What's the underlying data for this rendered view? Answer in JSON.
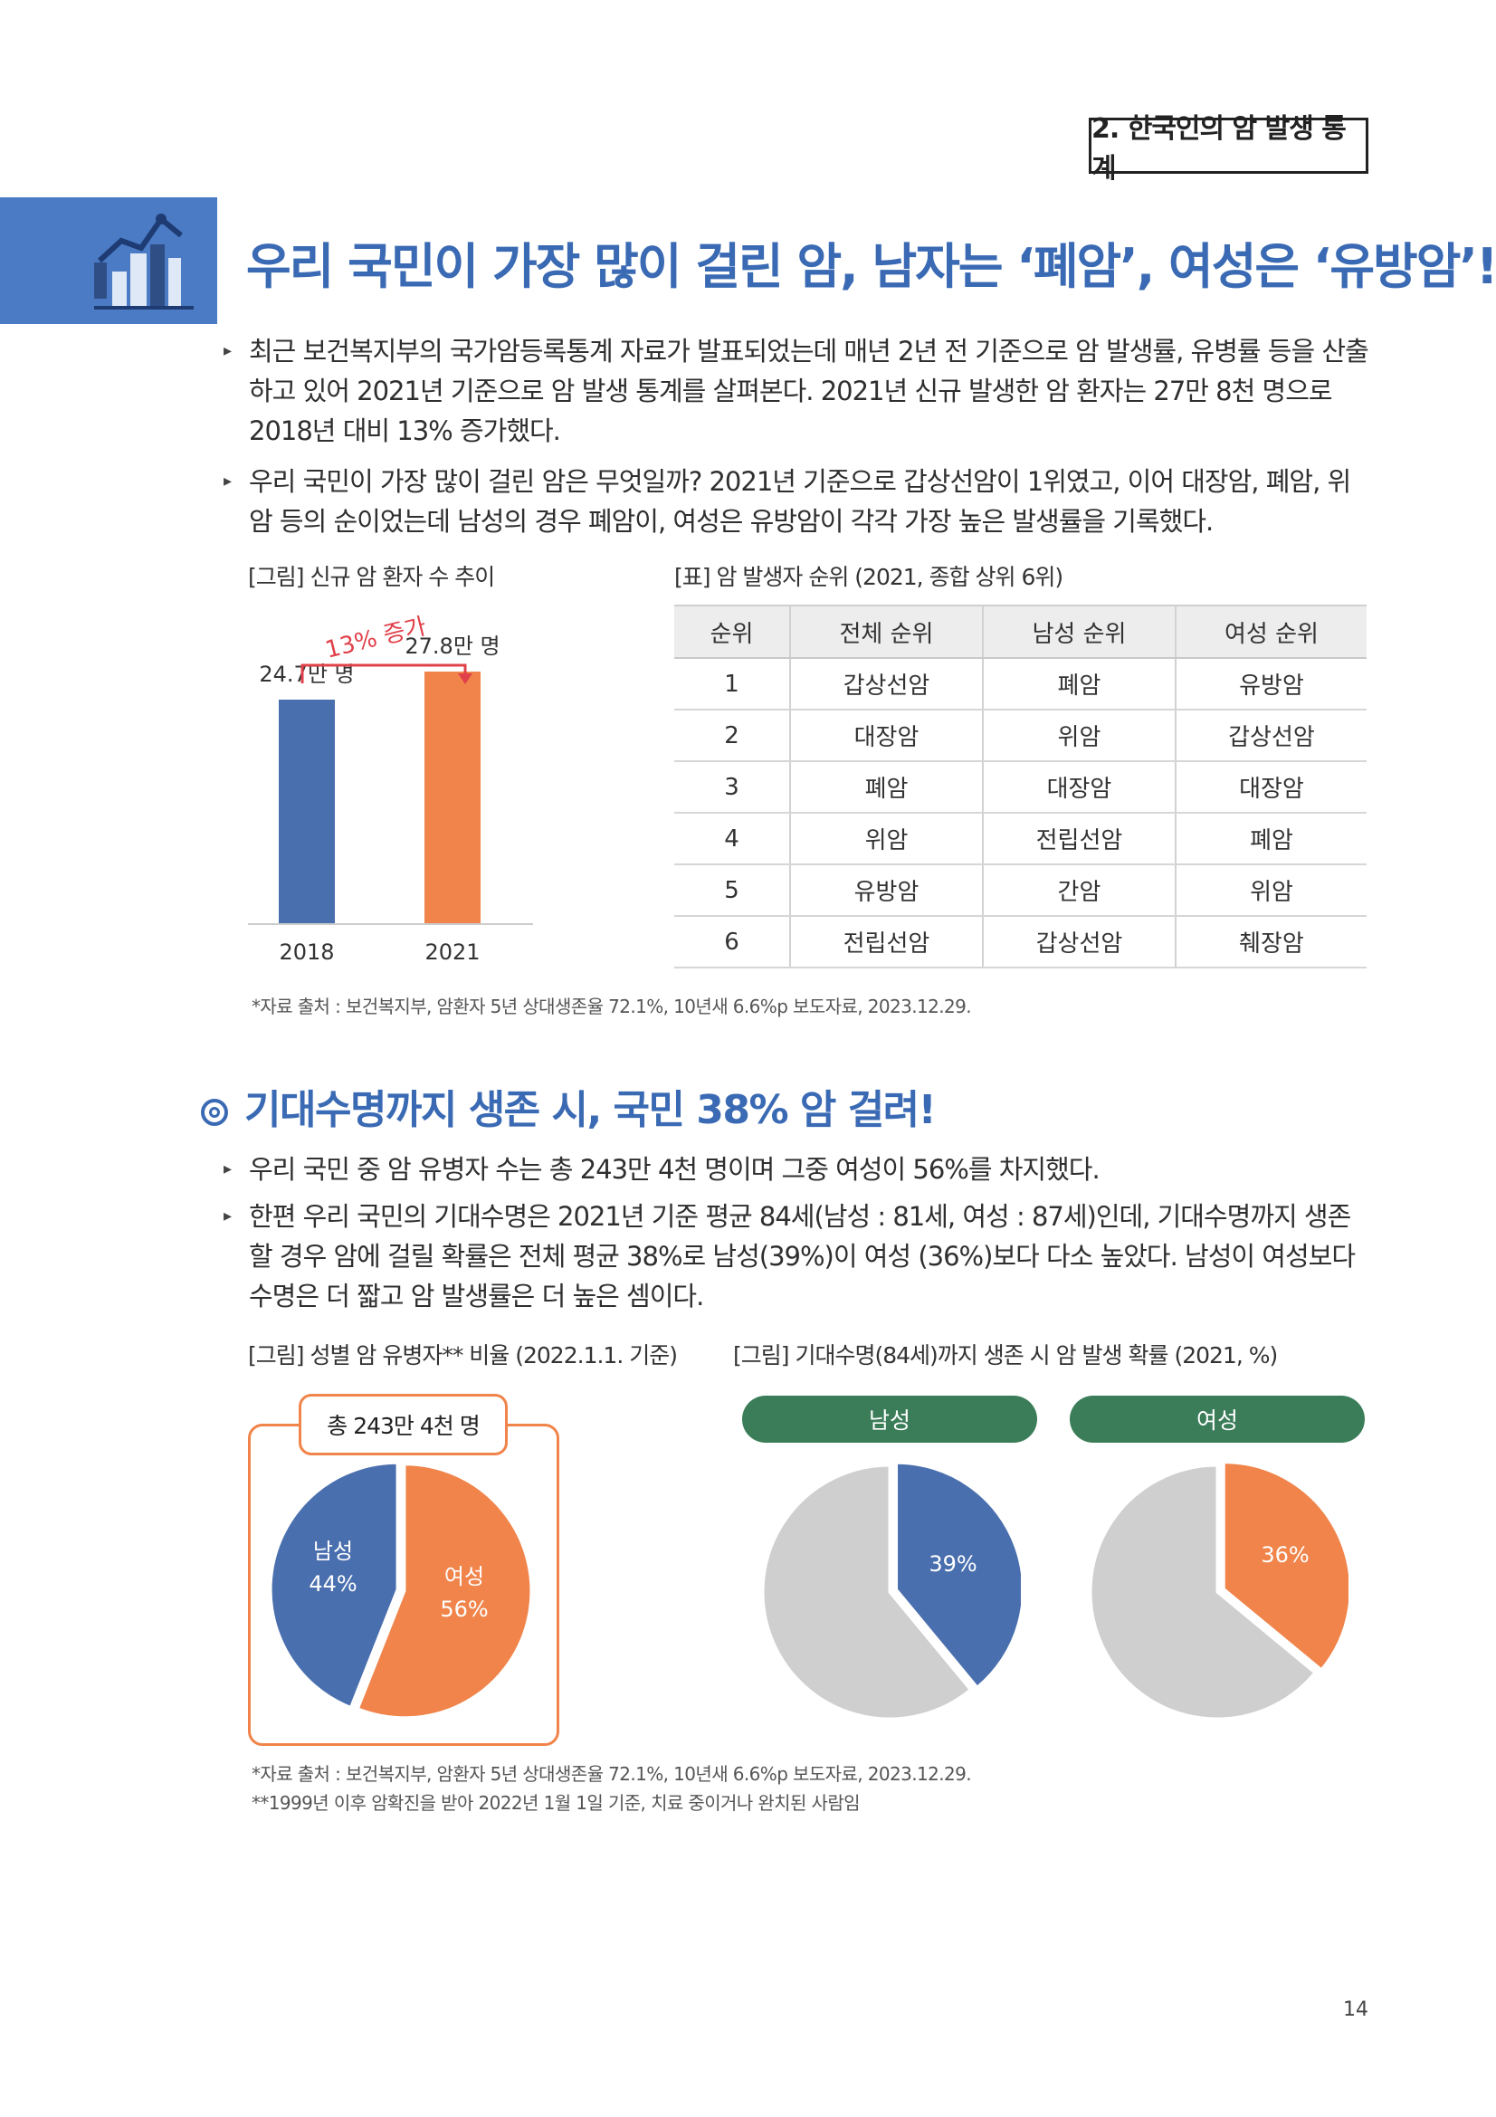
{
  "header": {
    "section_tag": "2. 한국인의 암 발생 통계"
  },
  "main_title": "우리 국민이 가장 많이 걸린 암, 남자는 ‘폐암’, 여성은 ‘유방암’!",
  "intro_bullets": [
    "최근 보건복지부의 국가암등록통계 자료가 발표되었는데 매년 2년 전 기준으로 암 발생률, 유병률 등을 산출하고 있어 2021년 기준으로 암 발생 통계를 살펴본다. 2021년 신규 발생한 암 환자는 27만 8천 명으로 2018년 대비 13% 증가했다.",
    "우리 국민이 가장 많이 걸린 암은 무엇일까? 2021년 기준으로 갑상선암이 1위였고, 이어 대장암, 폐암, 위암 등의 순이었는데 남성의 경우 폐암이, 여성은 유방암이 각각 가장 높은 발생률을 기록했다."
  ],
  "trend_chart": {
    "caption": "[그림] 신규 암 환자 수 추이",
    "increase_label": "13% 증가",
    "bar_labels": [
      "24.7만 명",
      "27.8만 명"
    ]
  },
  "rank_table": {
    "caption": "[표] 암 발생자 순위 (2021, 종합 상위 6위)",
    "headers": [
      "순위",
      "전체 순위",
      "남성 순위",
      "여성 순위"
    ],
    "rows": [
      [
        "1",
        "갑상선암",
        "폐암",
        "유방암"
      ],
      [
        "2",
        "대장암",
        "위암",
        "갑상선암"
      ],
      [
        "3",
        "폐암",
        "대장암",
        "대장암"
      ],
      [
        "4",
        "위암",
        "전립선암",
        "폐암"
      ],
      [
        "5",
        "유방암",
        "간암",
        "위암"
      ],
      [
        "6",
        "전립선암",
        "갑상선암",
        "췌장암"
      ]
    ]
  },
  "source_1": "*자료 출처 : 보건복지부, 암환자 5년 상대생존율 72.1%, 10년새 6.6%p 보도자료, 2023.12.29.",
  "sub_title": "기대수명까지 생존 시, 국민 38% 암 걸려!",
  "survival_bullets": [
    "우리 국민 중 암 유병자 수는 총 243만 4천 명이며 그중 여성이 56%를 차지했다.",
    "한편 우리 국민의 기대수명은 2021년 기준 평균 84세(남성 : 81세, 여성 : 87세)인데, 기대수명까지 생존할 경우 암에 걸릴 확률은 전체 평균 38%로 남성(39%)이 여성 (36%)보다 다소 높았다. 남성이 여성보다 수명은 더 짧고 암 발생률은 더 높은 셈이다."
  ],
  "prevalence_chart": {
    "caption": "[그림] 성별 암 유병자** 비율 (2022.1.1. 기준)",
    "total_badge": "총 243만 4천 명",
    "slice_labels": [
      {
        "name": "남성",
        "pct": "44%"
      },
      {
        "name": "여성",
        "pct": "56%"
      }
    ]
  },
  "probability_chart": {
    "caption": "[그림] 기대수명(84세)까지 생존 시 암 발생 확률 (2021, %)",
    "panels": [
      {
        "title": "남성",
        "pct_label": "39%"
      },
      {
        "title": "여성",
        "pct_label": "36%"
      }
    ]
  },
  "source_2": "*자료 출처 : 보건복지부, 암환자 5년 상대생존율 72.1%, 10년새 6.6%p 보도자료, 2023.12.29.",
  "source_3": "**1999년 이후 암확진을 받아 2022년 1월 1일 기준, 치료 중이거나 완치된 사람임",
  "page_number": "14",
  "colors": {
    "blue": "#4a6fae",
    "orange": "#f0844a",
    "gray": "#cfcfcf",
    "green": "#3b7d59",
    "title_blue": "#3a6ab3"
  },
  "chart_data": [
    {
      "type": "bar",
      "categories": [
        "2018",
        "2021"
      ],
      "values": [
        24.7,
        27.8
      ],
      "title": "",
      "xlabel": "",
      "ylabel": "",
      "ylim": [
        0,
        30
      ]
    },
    {
      "type": "pie",
      "categories": [
        "남성",
        "여성"
      ],
      "values": [
        44,
        56
      ]
    },
    {
      "type": "pie",
      "categories": [
        "남성",
        ""
      ],
      "values": [
        39,
        61
      ]
    },
    {
      "type": "pie",
      "categories": [
        "여성",
        ""
      ],
      "values": [
        36,
        64
      ]
    }
  ]
}
